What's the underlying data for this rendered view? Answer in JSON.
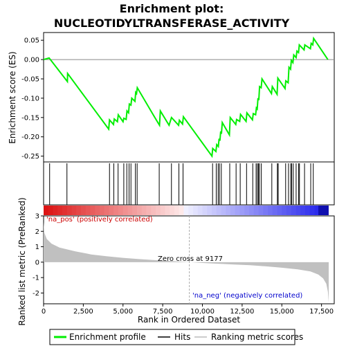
{
  "chart_data": {
    "type": "line",
    "title_line1": "Enrichment plot:",
    "title_line2": "NUCLEOTIDYLTRANSFERASE_ACTIVITY",
    "top_panel": {
      "ylabel": "Enrichment score (ES)",
      "ylim": [
        -0.265,
        0.07
      ],
      "yticks": [
        0.05,
        0.0,
        -0.05,
        -0.1,
        -0.15,
        -0.2,
        -0.25
      ],
      "ytick_labels": [
        "0.05",
        "0.00",
        "-0.05",
        "-0.10",
        "-0.15",
        "-0.20",
        "-0.25"
      ],
      "series_name": "Enrichment profile",
      "series_color": "#00ee00",
      "points": [
        [
          0,
          0.0
        ],
        [
          350,
          0.004
        ],
        [
          1500,
          -0.057
        ],
        [
          1510,
          -0.036
        ],
        [
          4100,
          -0.18
        ],
        [
          4150,
          -0.156
        ],
        [
          4400,
          -0.168
        ],
        [
          4450,
          -0.154
        ],
        [
          4650,
          -0.161
        ],
        [
          4700,
          -0.143
        ],
        [
          5000,
          -0.161
        ],
        [
          5050,
          -0.152
        ],
        [
          5200,
          -0.155
        ],
        [
          5250,
          -0.133
        ],
        [
          5350,
          -0.138
        ],
        [
          5400,
          -0.115
        ],
        [
          5500,
          -0.118
        ],
        [
          5550,
          -0.1
        ],
        [
          5750,
          -0.108
        ],
        [
          5800,
          -0.085
        ],
        [
          5850,
          -0.088
        ],
        [
          5900,
          -0.073
        ],
        [
          7000,
          -0.15
        ],
        [
          7300,
          -0.17
        ],
        [
          7350,
          -0.133
        ],
        [
          7900,
          -0.17
        ],
        [
          8050,
          -0.15
        ],
        [
          8500,
          -0.17
        ],
        [
          8550,
          -0.157
        ],
        [
          8750,
          -0.167
        ],
        [
          8800,
          -0.148
        ],
        [
          10600,
          -0.25
        ],
        [
          10650,
          -0.23
        ],
        [
          10850,
          -0.238
        ],
        [
          10900,
          -0.22
        ],
        [
          11000,
          -0.225
        ],
        [
          11050,
          -0.205
        ],
        [
          11100,
          -0.21
        ],
        [
          11150,
          -0.186
        ],
        [
          11200,
          -0.192
        ],
        [
          11250,
          -0.163
        ],
        [
          11700,
          -0.195
        ],
        [
          11750,
          -0.15
        ],
        [
          12100,
          -0.168
        ],
        [
          12150,
          -0.155
        ],
        [
          12350,
          -0.16
        ],
        [
          12400,
          -0.142
        ],
        [
          12750,
          -0.16
        ],
        [
          12800,
          -0.138
        ],
        [
          13150,
          -0.156
        ],
        [
          13200,
          -0.14
        ],
        [
          13350,
          -0.143
        ],
        [
          13400,
          -0.125
        ],
        [
          13450,
          -0.128
        ],
        [
          13500,
          -0.1
        ],
        [
          13550,
          -0.105
        ],
        [
          13600,
          -0.07
        ],
        [
          13700,
          -0.073
        ],
        [
          13750,
          -0.05
        ],
        [
          14350,
          -0.088
        ],
        [
          14400,
          -0.07
        ],
        [
          14700,
          -0.09
        ],
        [
          14750,
          -0.048
        ],
        [
          15200,
          -0.075
        ],
        [
          15250,
          -0.055
        ],
        [
          15400,
          -0.06
        ],
        [
          15450,
          -0.02
        ],
        [
          15550,
          -0.025
        ],
        [
          15600,
          -0.002
        ],
        [
          15700,
          -0.008
        ],
        [
          15750,
          0.012
        ],
        [
          15900,
          0.005
        ],
        [
          15950,
          0.022
        ],
        [
          16050,
          0.018
        ],
        [
          16100,
          0.038
        ],
        [
          16400,
          0.025
        ],
        [
          16450,
          0.038
        ],
        [
          16800,
          0.028
        ],
        [
          16850,
          0.042
        ],
        [
          16950,
          0.038
        ],
        [
          17000,
          0.055
        ],
        [
          17900,
          0.0
        ]
      ]
    },
    "hits": [
      380,
      1470,
      4150,
      4420,
      4690,
      5050,
      5240,
      5380,
      5500,
      5780,
      5890,
      7280,
      8050,
      8520,
      8780,
      10640,
      10870,
      10990,
      11070,
      11190,
      11720,
      12120,
      12380,
      12780,
      13170,
      13380,
      13460,
      13530,
      13590,
      13710,
      14370,
      14720,
      14770,
      15240,
      15420,
      15560,
      15620,
      15720,
      15900,
      16060,
      16110,
      16430,
      16820,
      16980
    ],
    "bottom_panel": {
      "ylabel": "Ranked list metric (PreRanked)",
      "ylim": [
        -2.7,
        3.0
      ],
      "yticks": [
        3,
        2,
        1,
        0,
        -1,
        -2
      ],
      "ytick_labels": [
        "3",
        "2",
        "1",
        "0",
        "-1",
        "-2"
      ],
      "xlabel": "Rank in Ordered Dataset",
      "xlim": [
        0,
        18300
      ],
      "xticks": [
        0,
        2500,
        5000,
        7500,
        10000,
        12500,
        15000,
        17500
      ],
      "xtick_labels": [
        "0",
        "2,500",
        "5,000",
        "7,500",
        "10,000",
        "12,500",
        "15,000",
        "17,500"
      ],
      "zero_cross_label": "Zero cross at 9177",
      "zero_cross_x": 9177,
      "pos_label": "'na_pos' (positively correlated)",
      "neg_label": "'na_neg' (negatively correlated)",
      "metric_curve": [
        [
          0,
          2.6
        ],
        [
          50,
          1.9
        ],
        [
          200,
          1.5
        ],
        [
          500,
          1.2
        ],
        [
          1000,
          0.95
        ],
        [
          2000,
          0.7
        ],
        [
          3000,
          0.5
        ],
        [
          4000,
          0.38
        ],
        [
          5000,
          0.28
        ],
        [
          6000,
          0.2
        ],
        [
          7000,
          0.13
        ],
        [
          8000,
          0.07
        ],
        [
          9177,
          0.0
        ],
        [
          10000,
          -0.05
        ],
        [
          11000,
          -0.1
        ],
        [
          12000,
          -0.15
        ],
        [
          13000,
          -0.2
        ],
        [
          14000,
          -0.27
        ],
        [
          15000,
          -0.36
        ],
        [
          16000,
          -0.47
        ],
        [
          16800,
          -0.6
        ],
        [
          17300,
          -0.8
        ],
        [
          17600,
          -1.05
        ],
        [
          17800,
          -1.4
        ],
        [
          17900,
          -1.9
        ],
        [
          17950,
          -2.6
        ]
      ]
    },
    "legend": [
      "Enrichment profile",
      "Hits",
      "Ranking metric scores"
    ]
  }
}
